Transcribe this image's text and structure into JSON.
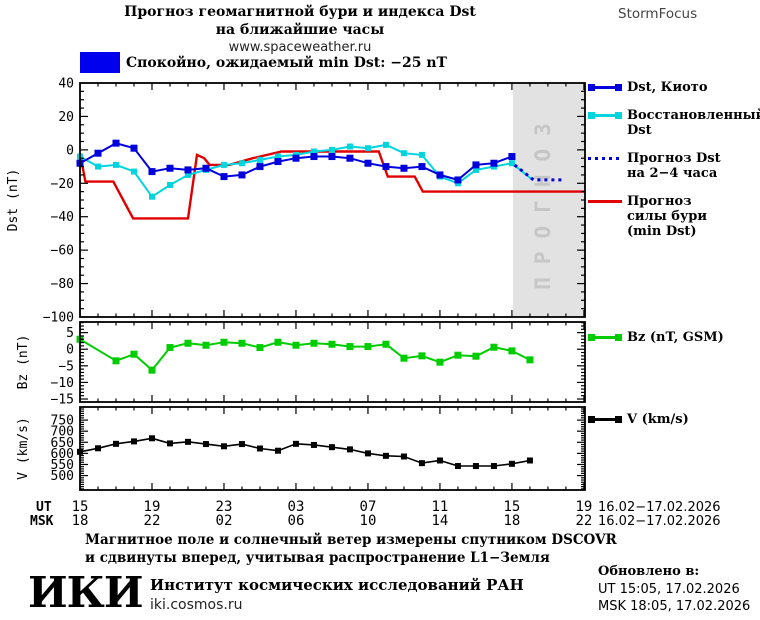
{
  "header": {
    "title_line1": "Прогноз геомагнитной бури и индекса Dst",
    "title_line2": "на ближайшие часы",
    "source_url": "www.spaceweather.ru",
    "brand": "StormFocus"
  },
  "status": {
    "label": "Спокойно, ожидаемый min Dst: −25 nT",
    "swatch_color": "#0000ee"
  },
  "chart_data": [
    {
      "type": "line",
      "title": "",
      "ylabel": "Dst (nT)",
      "ylim": [
        40,
        -100
      ],
      "yticks": [
        40,
        20,
        0,
        -20,
        -40,
        -60,
        -80,
        -100
      ],
      "y_minor_step": 5,
      "x_hours_range": [
        0,
        28.06
      ],
      "x_major_ticks_hours": [
        0,
        4,
        8,
        12,
        16,
        20,
        24,
        28
      ],
      "x_minor_step_hours": 1,
      "forecast_band": {
        "from_hour": 24.06,
        "to_hour": 28.06,
        "label": "ПРОГНОЗ"
      },
      "series": [
        {
          "id": "storm-forecast-line",
          "name": "Прогноз силы бури (min Dst)",
          "color": "#e00000",
          "style": "solid",
          "marker": "none",
          "width": 2.4,
          "msize": 0,
          "points": [
            [
              0,
              -2
            ],
            [
              0.3,
              -19
            ],
            [
              1.85,
              -19
            ],
            [
              2.95,
              -41
            ],
            [
              6.0,
              -41
            ],
            [
              6.5,
              -3
            ],
            [
              6.9,
              -5
            ],
            [
              7.2,
              -9
            ],
            [
              8.3,
              -9
            ],
            [
              9.6,
              -5
            ],
            [
              11.2,
              -1
            ],
            [
              16.6,
              -1
            ],
            [
              17.1,
              -16
            ],
            [
              18.6,
              -16
            ],
            [
              19.05,
              -25
            ],
            [
              28.05,
              -25
            ]
          ]
        },
        {
          "id": "restored-dst-extension",
          "name": "Восстановленный Dst (переход к прогнозу)",
          "color": "#00d5dd",
          "style": "solid",
          "marker": "none",
          "width": 2,
          "msize": 0,
          "points": [
            [
              24,
              -8
            ],
            [
              25.15,
              -18
            ]
          ]
        },
        {
          "id": "restored-dst-line",
          "name": "Восстановленный Dst",
          "color": "#00d5dd",
          "style": "solid",
          "marker": "square",
          "width": 2,
          "msize": 6,
          "points": [
            [
              0,
              -4
            ],
            [
              1,
              -10
            ],
            [
              2,
              -9
            ],
            [
              3,
              -13
            ],
            [
              4,
              -28
            ],
            [
              5,
              -21
            ],
            [
              6,
              -15
            ],
            [
              7,
              -12
            ],
            [
              8,
              -9
            ],
            [
              9,
              -8
            ],
            [
              10,
              -6
            ],
            [
              11,
              -4
            ],
            [
              12,
              -3
            ],
            [
              13,
              -1
            ],
            [
              14,
              0
            ],
            [
              15,
              2
            ],
            [
              16,
              1
            ],
            [
              17,
              3
            ],
            [
              18,
              -2
            ],
            [
              19,
              -3
            ],
            [
              20,
              -16
            ],
            [
              21,
              -20
            ],
            [
              22,
              -12
            ],
            [
              23,
              -10
            ],
            [
              24,
              -8
            ]
          ]
        },
        {
          "id": "dst-kyoto-line",
          "name": "Dst, Киото",
          "color": "#0000dd",
          "style": "solid",
          "marker": "square",
          "width": 2,
          "msize": 7,
          "points": [
            [
              0,
              -8
            ],
            [
              1,
              -2
            ],
            [
              2,
              4
            ],
            [
              3,
              1
            ],
            [
              4,
              -13
            ],
            [
              5,
              -11
            ],
            [
              6,
              -12
            ],
            [
              7,
              -11
            ],
            [
              8,
              -16
            ],
            [
              9,
              -15
            ],
            [
              10,
              -10
            ],
            [
              11,
              -7
            ],
            [
              12,
              -5
            ],
            [
              13,
              -4
            ],
            [
              14,
              -4
            ],
            [
              15,
              -5
            ],
            [
              16,
              -8
            ],
            [
              17,
              -10
            ],
            [
              18,
              -11
            ],
            [
              19,
              -10
            ],
            [
              20,
              -15
            ],
            [
              21,
              -18
            ],
            [
              22,
              -9
            ],
            [
              23,
              -8
            ],
            [
              24,
              -4
            ]
          ]
        },
        {
          "id": "forecast-dst-dotted-line",
          "name": "Прогноз Dst на 2−4 часа",
          "color": "#0000dd",
          "style": "dotted",
          "marker": "none",
          "width": 3,
          "msize": 0,
          "points": [
            [
              24.15,
              -9
            ],
            [
              25.2,
              -18
            ],
            [
              26.9,
              -18
            ]
          ]
        }
      ]
    },
    {
      "type": "line",
      "title": "",
      "ylabel": "Bz (nT)",
      "ylim": [
        8.2,
        -15.9
      ],
      "yticks": [
        5,
        0,
        -5,
        -10,
        -15
      ],
      "y_minor_step": 1,
      "series": [
        {
          "id": "bz-line",
          "name": "Bz (nT, GSM)",
          "color": "#00cc00",
          "style": "solid",
          "marker": "square",
          "width": 2,
          "msize": 7,
          "points": [
            [
              0,
              3
            ],
            [
              2,
              -3.5
            ],
            [
              3,
              -1.5
            ],
            [
              4,
              -6.3
            ],
            [
              5,
              0.5
            ],
            [
              6,
              1.8
            ],
            [
              7,
              1.2
            ],
            [
              8,
              2.1
            ],
            [
              9,
              1.8
            ],
            [
              10,
              0.5
            ],
            [
              11,
              2.1
            ],
            [
              12,
              1.2
            ],
            [
              13,
              1.8
            ],
            [
              14,
              1.5
            ],
            [
              15,
              0.8
            ],
            [
              16,
              0.8
            ],
            [
              17,
              1.5
            ],
            [
              18,
              -2.7
            ],
            [
              19,
              -2.0
            ],
            [
              20,
              -3.9
            ],
            [
              21,
              -1.8
            ],
            [
              22,
              -2.1
            ],
            [
              23,
              0.6
            ],
            [
              24,
              -0.5
            ],
            [
              25,
              -3.2
            ]
          ]
        }
      ]
    },
    {
      "type": "line",
      "title": "",
      "ylabel": "V (km/s)",
      "ylim": [
        809,
        435
      ],
      "yticks": [
        750,
        700,
        650,
        600,
        550,
        500
      ],
      "y_minor_step": 10,
      "series": [
        {
          "id": "v-line",
          "name": "V (km/s)",
          "color": "#000000",
          "style": "solid",
          "marker": "square",
          "width": 1.6,
          "msize": 6,
          "points": [
            [
              0,
              607
            ],
            [
              1,
              623
            ],
            [
              2,
              643
            ],
            [
              3,
              654
            ],
            [
              4,
              668
            ],
            [
              5,
              645
            ],
            [
              6,
              652
            ],
            [
              7,
              642
            ],
            [
              8,
              632
            ],
            [
              9,
              642
            ],
            [
              10,
              622
            ],
            [
              11,
              612
            ],
            [
              12,
              643
            ],
            [
              13,
              638
            ],
            [
              14,
              628
            ],
            [
              15,
              618
            ],
            [
              16,
              600
            ],
            [
              17,
              589
            ],
            [
              18,
              586
            ],
            [
              19,
              556
            ],
            [
              20,
              568
            ],
            [
              21,
              543
            ],
            [
              22,
              543
            ],
            [
              23,
              543
            ],
            [
              24,
              553
            ],
            [
              25,
              568
            ]
          ]
        }
      ]
    }
  ],
  "legends": {
    "dst": {
      "items": [
        {
          "icon": "dst-kyoto-legend-marker",
          "marker": "square-line",
          "color": "#0000dd",
          "lines": [
            "Dst, Киото"
          ]
        },
        {
          "icon": "restored-dst-legend-marker",
          "marker": "square-line",
          "color": "#00d5dd",
          "lines": [
            "Восстановленный",
            "Dst"
          ]
        },
        {
          "icon": "forecast-dst-legend-marker",
          "marker": "dotted",
          "color": "#0000dd",
          "lines": [
            "Прогноз Dst",
            "на 2−4 часа"
          ]
        },
        {
          "icon": "storm-strength-legend-marker",
          "marker": "line",
          "color": "#e00000",
          "lines": [
            "Прогноз",
            "силы бури",
            "(min Dst)"
          ]
        }
      ]
    },
    "bz": {
      "items": [
        {
          "icon": "bz-legend-marker",
          "marker": "square-line",
          "color": "#00cc00",
          "lines": [
            "Bz (nT, GSM)"
          ]
        }
      ]
    },
    "v": {
      "items": [
        {
          "icon": "v-legend-marker",
          "marker": "square-line",
          "color": "#000000",
          "lines": [
            "V (km/s)"
          ]
        }
      ]
    }
  },
  "xaxis": {
    "ut_label": "UT",
    "msk_label": "MSK",
    "ut_ticks": [
      "15",
      "19",
      "23",
      "03",
      "07",
      "11",
      "15",
      "19"
    ],
    "msk_ticks": [
      "18",
      "22",
      "02",
      "06",
      "10",
      "14",
      "18",
      "22"
    ],
    "ut_date_range": "16.02−17.02.2026",
    "msk_date_range": "16.02−17.02.2026"
  },
  "footer": {
    "line1": "Магнитное поле и солнечный ветер измерены спутником DSCOVR",
    "line2": "и сдвинуты вперед, учитывая распространение L1−Земля",
    "logo_text": "ИКИ",
    "institute": "Институт космических исследований РАН",
    "website": "iki.cosmos.ru"
  },
  "updated": {
    "label": "Обновлено в:",
    "ut": "UT  15:05, 17.02.2026",
    "msk": "MSK 18:05, 17.02.2026"
  }
}
